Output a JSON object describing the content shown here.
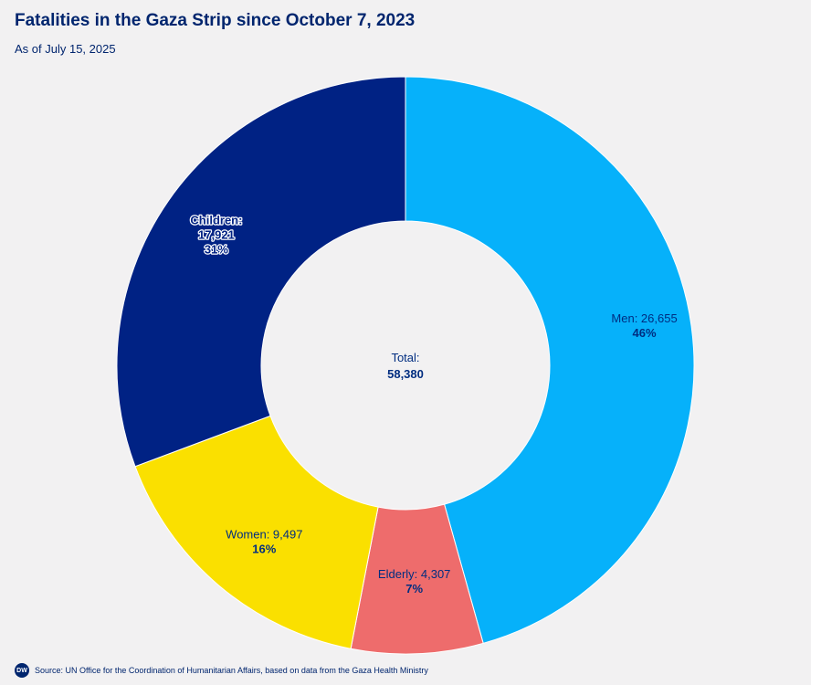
{
  "header": {
    "title": "Fatalities in the Gaza Strip since October 7, 2023",
    "subtitle": "As of July 15, 2025"
  },
  "center": {
    "label": "Total:",
    "value": "58,380"
  },
  "footer": {
    "logo": "DW",
    "source": "Source: UN Office for the Coordination of Humanitarian Affairs, based on data from the Gaza Health Ministry"
  },
  "chart_data": {
    "type": "pie",
    "variant": "donut",
    "title": "Fatalities in the Gaza Strip since October 7, 2023",
    "subtitle": "As of July 15, 2025",
    "total": 58380,
    "slices": [
      {
        "name": "Men",
        "value": 26655,
        "percent": 46,
        "label": "Men: 26,655",
        "pct_label": "46%",
        "color": "#06b1fa"
      },
      {
        "name": "Elderly",
        "value": 4307,
        "percent": 7,
        "label": "Elderly: 4,307",
        "pct_label": "7%",
        "color": "#ee6c6c"
      },
      {
        "name": "Women",
        "value": 9497,
        "percent": 16,
        "label": "Women: 9,497",
        "pct_label": "16%",
        "color": "#fae000"
      },
      {
        "name": "Children",
        "value": 17921,
        "percent": 31,
        "label_lines": [
          "Children:",
          "17,921",
          "31%"
        ],
        "color": "#002284"
      }
    ]
  }
}
